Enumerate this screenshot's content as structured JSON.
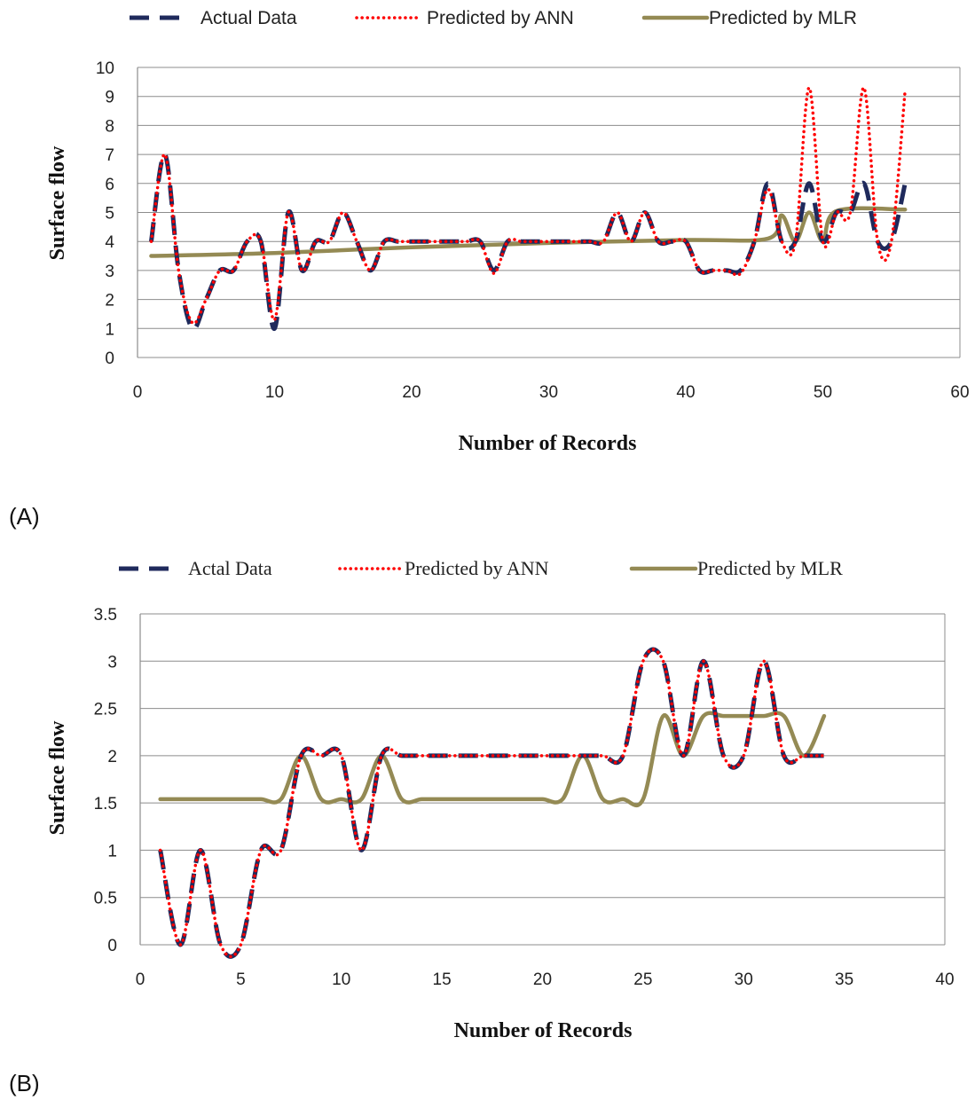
{
  "chart_data": [
    {
      "type": "line",
      "panel_label": "(A)",
      "xlabel": "Number of Records",
      "ylabel": "Surface flow",
      "xlim": [
        0,
        60
      ],
      "ylim": [
        0,
        10
      ],
      "xticks": [
        0,
        10,
        20,
        30,
        40,
        50,
        60
      ],
      "yticks": [
        0,
        1,
        2,
        3,
        4,
        5,
        6,
        7,
        8,
        9,
        10
      ],
      "grid": "horizontal",
      "legend_position": "top",
      "series": [
        {
          "name": "Actual Data",
          "color": "#1f2a5c",
          "style": "dashed",
          "x": [
            1,
            2,
            3,
            4,
            5,
            6,
            7,
            8,
            9,
            10,
            11,
            12,
            13,
            14,
            15,
            16,
            17,
            18,
            19,
            20,
            21,
            22,
            23,
            24,
            25,
            26,
            27,
            28,
            29,
            30,
            31,
            32,
            33,
            34,
            35,
            36,
            37,
            38,
            39,
            40,
            41,
            42,
            43,
            44,
            45,
            46,
            47,
            48,
            49,
            50,
            51,
            52,
            53,
            54,
            55,
            56
          ],
          "y": [
            4,
            7,
            3,
            1,
            2,
            3,
            3,
            4,
            4,
            1,
            5,
            3,
            4,
            4,
            5,
            4,
            3,
            4,
            4,
            4,
            4,
            4,
            4,
            4,
            4,
            3,
            4,
            4,
            4,
            4,
            4,
            4,
            4,
            4,
            5,
            4,
            5,
            4,
            4,
            4,
            3,
            3,
            3,
            3,
            4,
            6,
            4,
            4,
            6,
            4,
            5,
            5,
            6,
            4,
            4,
            6
          ]
        },
        {
          "name": "Predicted by ANN",
          "color": "#ff0000",
          "style": "dotted",
          "x": [
            1,
            2,
            3,
            4,
            5,
            6,
            7,
            8,
            9,
            10,
            11,
            12,
            13,
            14,
            15,
            16,
            17,
            18,
            19,
            20,
            21,
            22,
            23,
            24,
            25,
            26,
            27,
            28,
            29,
            30,
            31,
            32,
            33,
            34,
            35,
            36,
            37,
            38,
            39,
            40,
            41,
            42,
            43,
            44,
            45,
            46,
            47,
            48,
            49,
            50,
            51,
            52,
            53,
            54,
            55,
            56
          ],
          "y": [
            4,
            7,
            3,
            1.2,
            2,
            3,
            3,
            4,
            4,
            1.3,
            5,
            3,
            4,
            4,
            5,
            4,
            3,
            4,
            4,
            4,
            4,
            4,
            4,
            4,
            4,
            2.9,
            4,
            4,
            4,
            4,
            4,
            4,
            4,
            4,
            5,
            4,
            5,
            4,
            4,
            4,
            3,
            3,
            3,
            2.9,
            4,
            5.8,
            4,
            4,
            9.3,
            4,
            5,
            5,
            9.3,
            4,
            4,
            9.2
          ]
        },
        {
          "name": "Predicted by MLR",
          "color": "#948a54",
          "style": "solid",
          "x": [
            1,
            10,
            20,
            30,
            40,
            46,
            47,
            48,
            49,
            50,
            51,
            56
          ],
          "y": [
            3.5,
            3.6,
            3.8,
            3.95,
            4.05,
            4.1,
            4.9,
            4,
            5,
            4,
            5.05,
            5.1
          ]
        }
      ]
    },
    {
      "type": "line",
      "panel_label": "(B)",
      "xlabel": "Number of Records",
      "ylabel": "Surface flow",
      "xlim": [
        0,
        40
      ],
      "ylim": [
        0,
        3.5
      ],
      "xticks": [
        0,
        5,
        10,
        15,
        20,
        25,
        30,
        35,
        40
      ],
      "yticks": [
        0,
        0.5,
        1,
        1.5,
        2,
        2.5,
        3,
        3.5
      ],
      "grid": "horizontal",
      "legend_position": "top",
      "series": [
        {
          "name": "Actal Data",
          "color": "#1f2a5c",
          "style": "dashed",
          "x": [
            1,
            2,
            3,
            4,
            5,
            6,
            7,
            8,
            9,
            10,
            11,
            12,
            13,
            14,
            15,
            16,
            17,
            18,
            19,
            20,
            21,
            22,
            23,
            24,
            25,
            26,
            27,
            28,
            29,
            30,
            31,
            32,
            33,
            34
          ],
          "y": [
            1,
            0,
            1,
            0,
            0,
            1,
            1,
            2,
            2,
            2,
            1,
            2,
            2,
            2,
            2,
            2,
            2,
            2,
            2,
            2,
            2,
            2,
            2,
            2,
            3,
            3,
            2,
            3,
            2,
            2,
            3,
            2,
            2,
            2
          ]
        },
        {
          "name": "Predicted by ANN",
          "color": "#ff0000",
          "style": "dotted",
          "x": [
            1,
            2,
            3,
            4,
            5,
            6,
            7,
            8,
            9,
            10,
            11,
            12,
            13,
            14,
            15,
            16,
            17,
            18,
            19,
            20,
            21,
            22,
            23,
            24,
            25,
            26,
            27,
            28,
            29,
            30,
            31,
            32,
            33,
            34
          ],
          "y": [
            1,
            0,
            1,
            0,
            0,
            1,
            1,
            2,
            2,
            2,
            1,
            2,
            2,
            2,
            2,
            2,
            2,
            2,
            2,
            2,
            2,
            2,
            2,
            2,
            3,
            3,
            2,
            3,
            2,
            2,
            3,
            2,
            2,
            2
          ]
        },
        {
          "name": "Predicted by MLR",
          "color": "#948a54",
          "style": "solid",
          "x": [
            1,
            2,
            3,
            4,
            5,
            6,
            7,
            8,
            9,
            10,
            11,
            12,
            13,
            14,
            15,
            16,
            17,
            18,
            19,
            20,
            21,
            22,
            23,
            24,
            25,
            26,
            27,
            28,
            29,
            30,
            31,
            32,
            33,
            34
          ],
          "y": [
            1.54,
            1.54,
            1.54,
            1.54,
            1.54,
            1.54,
            1.54,
            2,
            1.54,
            1.54,
            1.54,
            2,
            1.54,
            1.54,
            1.54,
            1.54,
            1.54,
            1.54,
            1.54,
            1.54,
            1.54,
            2,
            1.54,
            1.54,
            1.54,
            2.42,
            2,
            2.42,
            2.42,
            2.42,
            2.42,
            2.42,
            2,
            2.42
          ]
        }
      ]
    }
  ]
}
